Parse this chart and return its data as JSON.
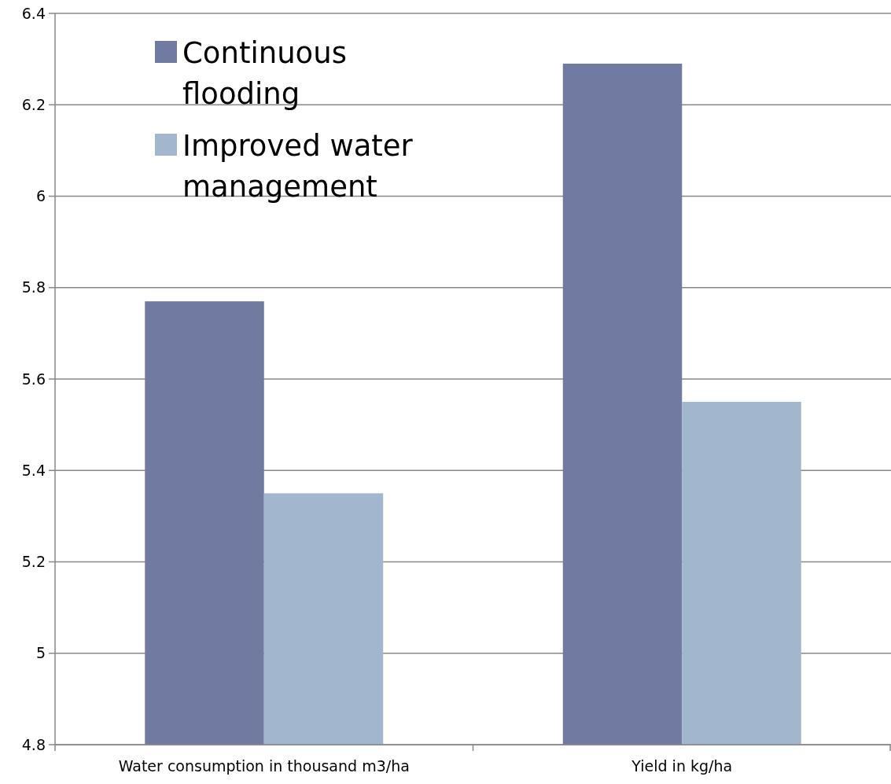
{
  "chart_data": {
    "type": "bar",
    "categories": [
      "Water consumption in thousand m3/ha",
      "Yield in kg/ha"
    ],
    "series": [
      {
        "name": "Continuous flooding",
        "color": "#717ba2",
        "values": [
          5.77,
          6.29
        ]
      },
      {
        "name": "Improved water management",
        "color": "#a2b7cd",
        "values": [
          5.35,
          5.55
        ]
      }
    ],
    "ylim": [
      4.8,
      6.4
    ],
    "yticks": [
      4.8,
      5,
      5.2,
      5.4,
      5.6,
      5.8,
      6,
      6.2,
      6.4
    ],
    "grid": "y",
    "legend": "top left"
  }
}
